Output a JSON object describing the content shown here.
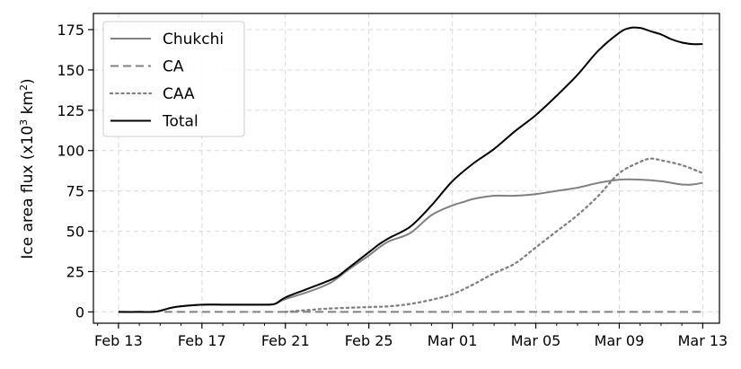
{
  "chart_data": {
    "type": "line",
    "ylabel_main": "Ice area flux (x10",
    "ylabel_sup1": "3",
    "ylabel_mid": " km",
    "ylabel_sup2": "2",
    "ylabel_end": ")",
    "xlabel": "",
    "ylim": [
      -7,
      185
    ],
    "xlim_days": [
      -1.2,
      28.8
    ],
    "grid": true,
    "legend_position": "top-left",
    "x_ticks": [
      {
        "day": 0,
        "label": "Feb 13"
      },
      {
        "day": 4,
        "label": "Feb 17"
      },
      {
        "day": 8,
        "label": "Feb 21"
      },
      {
        "day": 12,
        "label": "Feb 25"
      },
      {
        "day": 16,
        "label": "Mar 01"
      },
      {
        "day": 20,
        "label": "Mar 05"
      },
      {
        "day": 24,
        "label": "Mar 09"
      },
      {
        "day": 28,
        "label": "Mar 13"
      }
    ],
    "y_ticks": [
      0,
      25,
      50,
      75,
      100,
      125,
      150,
      175
    ],
    "series": [
      {
        "name": "Chukchi",
        "color": "#808080",
        "dash": "solid",
        "x": [
          0,
          1,
          1.8,
          2.5,
          3,
          4,
          5,
          6,
          7,
          7.5,
          8,
          9,
          10,
          10.5,
          11,
          12,
          12.5,
          13,
          14,
          15,
          16,
          16.5,
          17,
          18,
          19,
          20,
          21,
          22,
          23,
          24,
          25,
          26,
          27,
          27.5,
          28
        ],
        "values": [
          0,
          0,
          0.2,
          2.5,
          3.5,
          4.5,
          4.5,
          4.5,
          4.5,
          5,
          8,
          12,
          17,
          21,
          26,
          35,
          40,
          44,
          49,
          60,
          66,
          68,
          70,
          72,
          72,
          73,
          75,
          77,
          80,
          82,
          82,
          81,
          79,
          79,
          80
        ]
      },
      {
        "name": "CA",
        "color": "#808080",
        "dash": "dashed",
        "x": [
          2.2,
          8,
          12,
          16,
          20,
          24,
          28
        ],
        "values": [
          0,
          0,
          0,
          0,
          0,
          0,
          0
        ]
      },
      {
        "name": "CAA",
        "color": "#808080",
        "dash": "dotted",
        "x": [
          8,
          10,
          12,
          13,
          14,
          15,
          16,
          17,
          18,
          19,
          20,
          21,
          22,
          23,
          24,
          25,
          25.5,
          26,
          27,
          28
        ],
        "values": [
          0,
          2,
          3,
          3.5,
          5,
          7.5,
          11,
          17,
          24,
          30,
          40,
          50,
          60,
          72,
          86,
          93,
          95,
          94,
          91,
          86
        ]
      },
      {
        "name": "Total",
        "color": "#000000",
        "dash": "solid",
        "x": [
          0,
          1,
          1.8,
          2.5,
          3,
          4,
          5,
          6,
          7,
          7.5,
          8,
          9,
          10,
          10.5,
          11,
          12,
          12.5,
          13,
          14,
          15,
          16,
          17,
          18,
          19,
          20,
          21,
          22,
          23,
          24,
          24.5,
          25,
          25.5,
          26,
          26.5,
          27,
          27.5,
          28
        ],
        "values": [
          0,
          0,
          0.2,
          2.5,
          3.5,
          4.5,
          4.5,
          4.5,
          4.5,
          5,
          9,
          14,
          19,
          22,
          27,
          37,
          42,
          46,
          53,
          66,
          81,
          92,
          101,
          112,
          122,
          134,
          147,
          162,
          173,
          176,
          176,
          174,
          172,
          169,
          167,
          166,
          166
        ]
      }
    ]
  }
}
